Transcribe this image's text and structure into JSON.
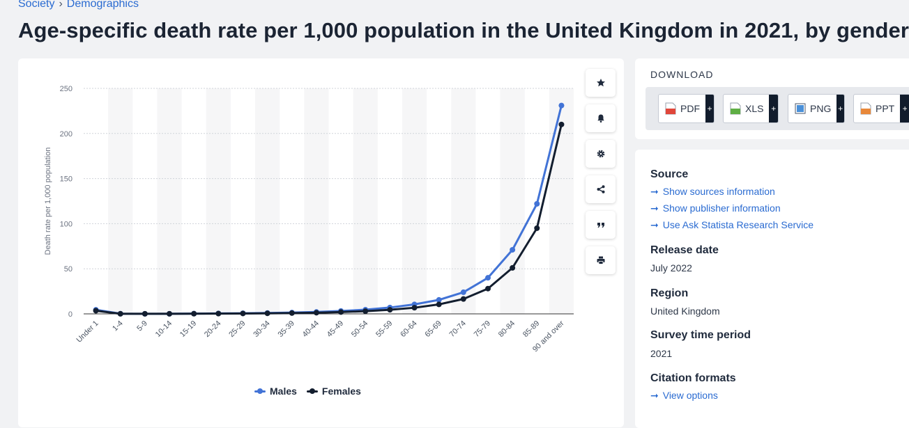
{
  "breadcrumb": [
    "Society",
    "Demographics"
  ],
  "breadcrumb_sep": "›",
  "page_title": "Age-specific death rate per 1,000 population in the United Kingdom in 2021, by gender",
  "colors": {
    "males": "#4273d6",
    "females": "#131e2f",
    "link": "#2a6bd1"
  },
  "tools": [
    "star-icon",
    "bell-icon",
    "gear-icon",
    "share-icon",
    "quote-icon",
    "print-icon"
  ],
  "download": {
    "title": "DOWNLOAD",
    "buttons": [
      {
        "label": "PDF",
        "plus": "+",
        "icon": "pdf-file-icon",
        "color": "#e0463a"
      },
      {
        "label": "XLS",
        "plus": "+",
        "icon": "xls-file-icon",
        "color": "#5fae45"
      },
      {
        "label": "PNG",
        "plus": "+",
        "icon": "png-file-icon",
        "color": "#4a90d9"
      },
      {
        "label": "PPT",
        "plus": "+",
        "icon": "ppt-file-icon",
        "color": "#e8883a"
      }
    ]
  },
  "info": {
    "source_heading": "Source",
    "source_links": [
      "Show sources information",
      "Show publisher information",
      "Use Ask Statista Research Service"
    ],
    "arrow": "➞",
    "release_heading": "Release date",
    "release_value": "July 2022",
    "region_heading": "Region",
    "region_value": "United Kingdom",
    "survey_heading": "Survey time period",
    "survey_value": "2021",
    "citation_heading": "Citation formats",
    "citation_link": "View options"
  },
  "chart_data": {
    "type": "line",
    "ylabel": "Death rate per 1,000 population",
    "ylim": [
      0,
      250
    ],
    "yticks": [
      0,
      50,
      100,
      150,
      200,
      250
    ],
    "grid": true,
    "legend_position": "bottom",
    "categories": [
      "Under 1",
      "1-4",
      "5-9",
      "10-14",
      "15-19",
      "20-24",
      "25-29",
      "30-34",
      "35-39",
      "40-44",
      "45-49",
      "50-54",
      "55-59",
      "60-64",
      "65-69",
      "70-74",
      "75-79",
      "80-84",
      "85-89",
      "90 and over"
    ],
    "series": [
      {
        "name": "Males",
        "values": [
          4.5,
          0.2,
          0.1,
          0.1,
          0.3,
          0.5,
          0.7,
          1.0,
          1.4,
          2.1,
          3.2,
          4.6,
          7.0,
          10.5,
          15.5,
          24.0,
          40.0,
          71.0,
          122.0,
          231.0
        ]
      },
      {
        "name": "Females",
        "values": [
          3.5,
          0.1,
          0.1,
          0.1,
          0.2,
          0.3,
          0.4,
          0.6,
          0.9,
          1.3,
          2.0,
          3.0,
          4.5,
          6.8,
          10.5,
          16.5,
          28.0,
          51.0,
          95.0,
          210.0
        ]
      }
    ]
  }
}
